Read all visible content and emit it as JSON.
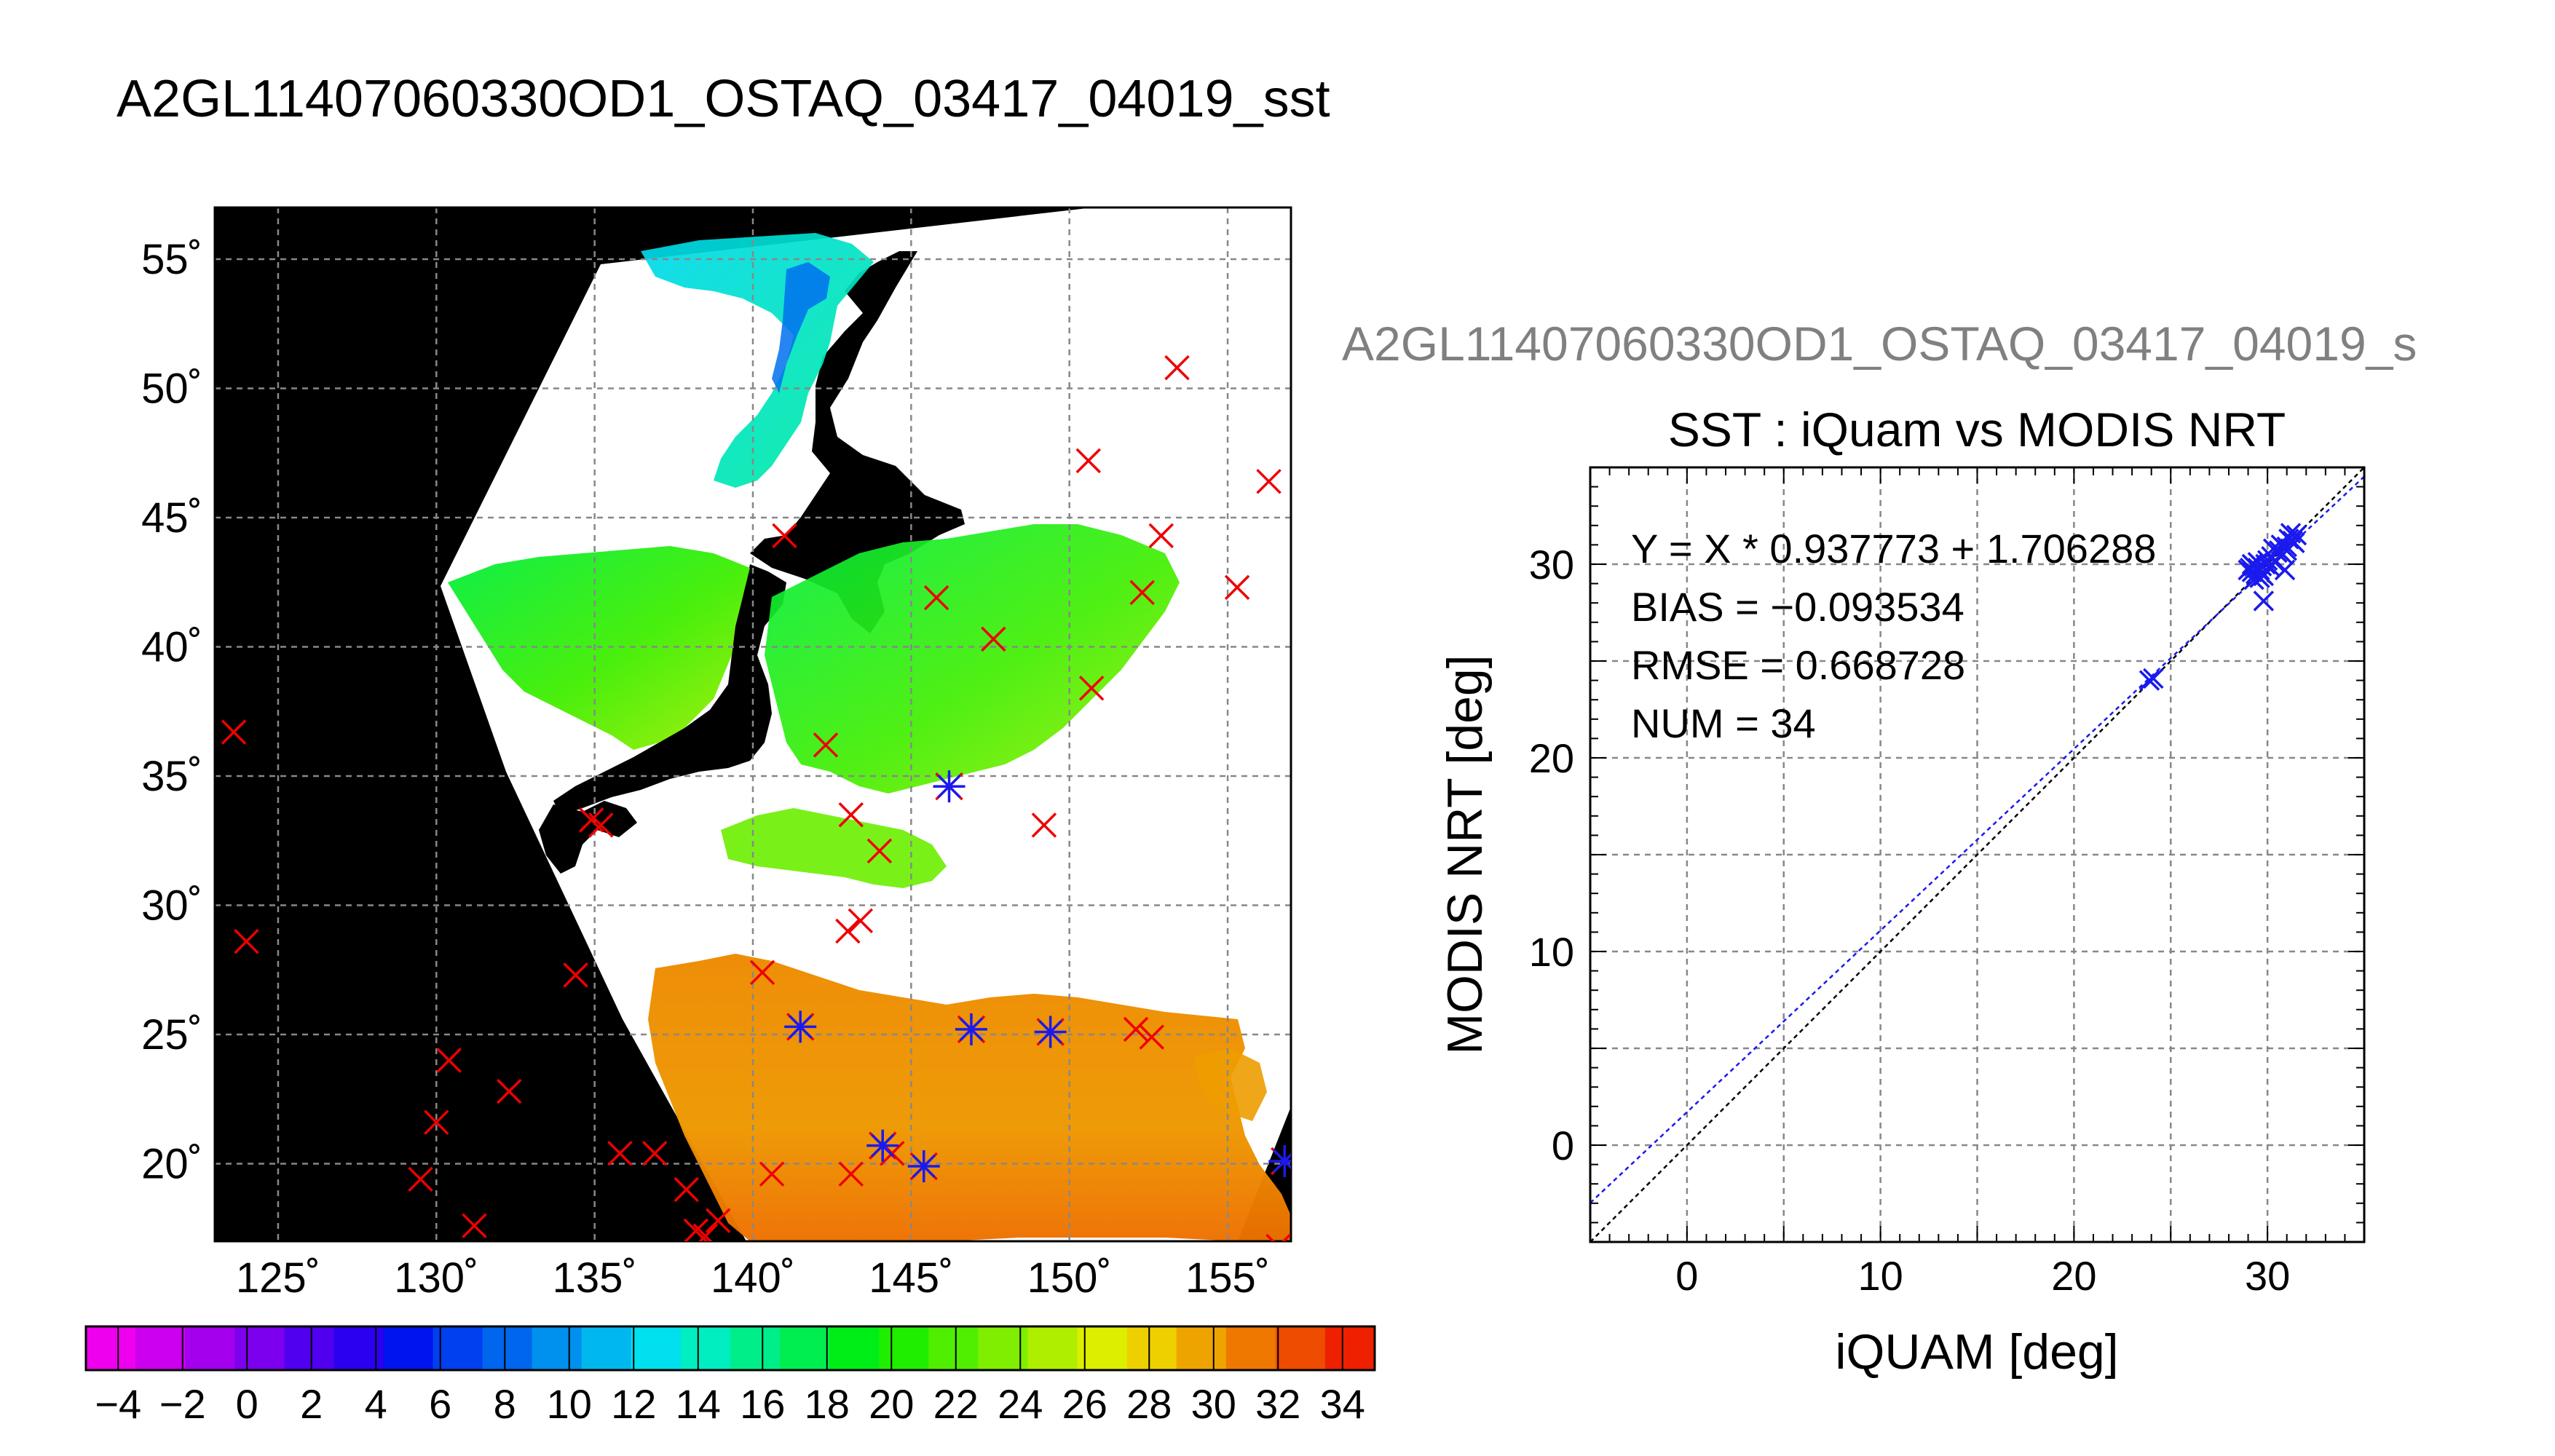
{
  "figure": {
    "main_title": "A2GL11407060330OD1_OSTAQ_03417_04019_sst",
    "sub_title": "A2GL11407060330OD1_OSTAQ_03417_04019_s"
  },
  "chart_data": [
    {
      "type": "heatmap",
      "description_of_marks": "SST swath map with in-situ match-up markers",
      "xlim": [
        123,
        157
      ],
      "ylim": [
        17,
        57
      ],
      "x_ticks": [
        125,
        130,
        135,
        140,
        145,
        150,
        155
      ],
      "x_tick_labels": [
        "125˚",
        "130˚",
        "135˚",
        "140˚",
        "145˚",
        "150˚",
        "155˚"
      ],
      "y_ticks": [
        20,
        25,
        30,
        35,
        40,
        45,
        50,
        55
      ],
      "y_tick_labels": [
        "20˚",
        "25˚",
        "30˚",
        "35˚",
        "40˚",
        "45˚",
        "50˚",
        "55˚"
      ],
      "grid": true,
      "colorbar": {
        "min": -5,
        "max": 35,
        "tick_labels": [
          "−4",
          "−2",
          "0",
          "2",
          "4",
          "6",
          "8",
          "10",
          "12",
          "14",
          "16",
          "18",
          "20",
          "22",
          "24",
          "26",
          "28",
          "30",
          "32",
          "34"
        ],
        "tick_values": [
          -4,
          -2,
          0,
          2,
          4,
          6,
          8,
          10,
          12,
          14,
          16,
          18,
          20,
          22,
          24,
          26,
          28,
          30,
          32,
          34
        ],
        "colors": [
          "#ee00ee",
          "#cc00ee",
          "#a400ee",
          "#7c00ee",
          "#5000ee",
          "#2a00ee",
          "#0014ee",
          "#0040ee",
          "#0066ee",
          "#0090ee",
          "#00b8ee",
          "#00e0ee",
          "#00eec0",
          "#00ee8a",
          "#00ee50",
          "#00ee18",
          "#20ee00",
          "#50ee00",
          "#80ee00",
          "#b0ee00",
          "#ddee00",
          "#eed000",
          "#eea400",
          "#ee7800",
          "#ee4c00",
          "#ee2000"
        ]
      },
      "points_unmatched_red": [
        [
          123.6,
          36.7
        ],
        [
          124.0,
          28.6
        ],
        [
          129.5,
          19.4
        ],
        [
          130.0,
          21.6
        ],
        [
          130.4,
          24.0
        ],
        [
          131.2,
          17.6
        ],
        [
          132.3,
          22.8
        ],
        [
          134.4,
          27.3
        ],
        [
          134.9,
          33.3
        ],
        [
          135.2,
          33.1
        ],
        [
          135.8,
          20.4
        ],
        [
          136.9,
          20.4
        ],
        [
          137.9,
          19.0
        ],
        [
          138.2,
          17.4
        ],
        [
          138.5,
          17.2
        ],
        [
          138.9,
          17.8
        ],
        [
          140.3,
          27.4
        ],
        [
          140.6,
          19.6
        ],
        [
          141.0,
          44.3
        ],
        [
          142.3,
          36.2
        ],
        [
          143.1,
          33.5
        ],
        [
          143.0,
          29.0
        ],
        [
          143.4,
          29.4
        ],
        [
          143.1,
          19.6
        ],
        [
          144.0,
          32.1
        ],
        [
          144.4,
          20.4
        ],
        [
          145.8,
          41.9
        ],
        [
          147.6,
          40.3
        ],
        [
          149.2,
          33.1
        ],
        [
          150.6,
          47.2
        ],
        [
          150.7,
          38.4
        ],
        [
          152.1,
          25.2
        ],
        [
          152.3,
          42.1
        ],
        [
          152.6,
          24.9
        ],
        [
          152.9,
          44.3
        ],
        [
          153.4,
          50.8
        ],
        [
          155.3,
          42.3
        ],
        [
          156.3,
          46.4
        ],
        [
          156.6,
          16.8
        ]
      ],
      "points_matched_blue": [
        [
          141.5,
          25.3
        ],
        [
          144.1,
          20.7
        ],
        [
          145.4,
          19.9
        ],
        [
          146.2,
          34.6
        ],
        [
          146.9,
          25.2
        ],
        [
          149.4,
          25.1
        ],
        [
          156.8,
          20.1
        ]
      ]
    },
    {
      "type": "scatter",
      "title": "SST : iQuam vs MODIS NRT",
      "xlabel": "iQUAM [deg]",
      "ylabel": "MODIS NRT [deg]",
      "xlim": [
        -5,
        35
      ],
      "ylim": [
        -5,
        35
      ],
      "x_ticks": [
        0,
        10,
        20,
        30
      ],
      "y_ticks": [
        0,
        10,
        20,
        30
      ],
      "grid": true,
      "annotations": [
        "Y = X * 0.937773 + 1.706288",
        "BIAS = −0.093534",
        "RMSE = 0.668728",
        "NUM = 34"
      ],
      "fit": {
        "slope": 0.937773,
        "intercept": 1.706288
      },
      "identity_line": true,
      "points": [
        [
          23.9,
          24.0
        ],
        [
          24.1,
          24.1
        ],
        [
          29.1,
          29.8
        ],
        [
          29.2,
          29.6
        ],
        [
          29.3,
          29.9
        ],
        [
          29.4,
          29.5
        ],
        [
          29.5,
          29.8
        ],
        [
          29.6,
          29.7
        ],
        [
          29.7,
          29.9
        ],
        [
          29.8,
          29.4
        ],
        [
          29.9,
          30.0
        ],
        [
          29.3,
          29.2
        ],
        [
          29.8,
          28.1
        ],
        [
          30.0,
          30.2
        ],
        [
          30.2,
          30.4
        ],
        [
          30.6,
          30.7
        ],
        [
          30.8,
          30.5
        ],
        [
          30.9,
          29.7
        ],
        [
          31.0,
          30.9
        ],
        [
          31.1,
          31.3
        ],
        [
          31.3,
          31.2
        ],
        [
          31.5,
          31.5
        ],
        [
          31.2,
          31.6
        ],
        [
          30.4,
          30.1
        ],
        [
          29.0,
          29.7
        ],
        [
          29.5,
          30.1
        ],
        [
          30.7,
          31.0
        ],
        [
          31.4,
          31.1
        ],
        [
          29.6,
          29.3
        ],
        [
          30.1,
          29.9
        ],
        [
          30.5,
          30.6
        ],
        [
          30.3,
          30.8
        ],
        [
          29.2,
          30.0
        ],
        [
          31.0,
          30.7
        ]
      ]
    }
  ]
}
